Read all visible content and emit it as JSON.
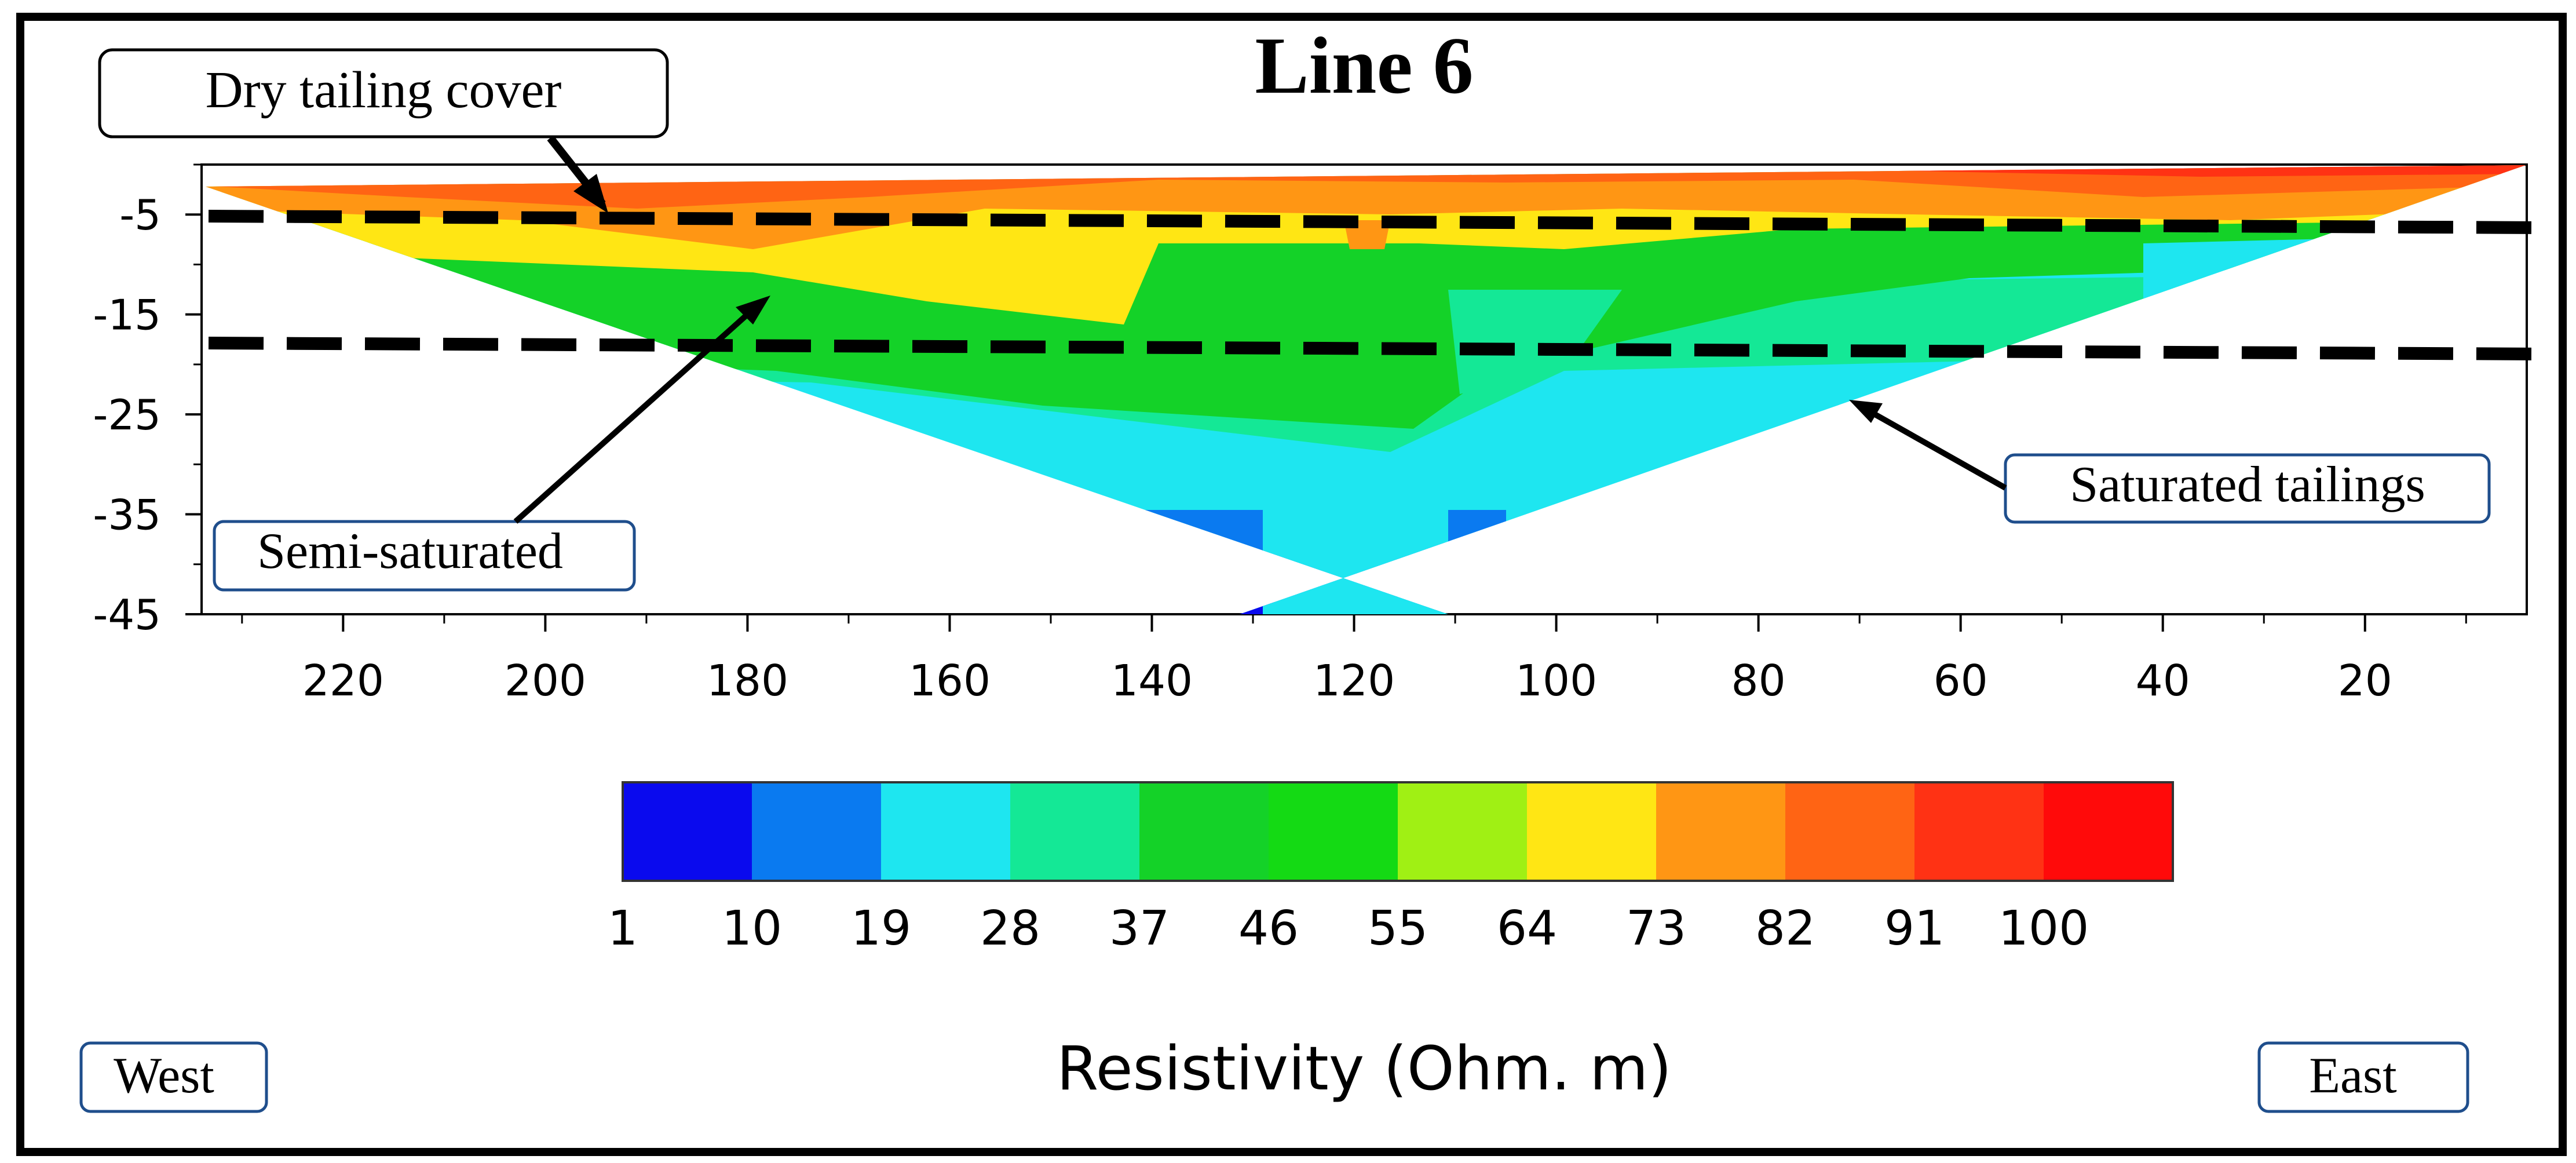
{
  "chart_data": {
    "type": "heatmap",
    "title": "Line 6",
    "xlabel": "",
    "ylabel": "",
    "x_axis_direction": "decreasing left to right",
    "xlim": [
      4,
      234
    ],
    "ylim": [
      -45,
      0
    ],
    "x_ticks": [
      220,
      200,
      180,
      160,
      140,
      120,
      100,
      80,
      60,
      40,
      20
    ],
    "y_ticks": [
      -5,
      -15,
      -25,
      -35,
      -45
    ],
    "colorbar": {
      "label": "Resistivity (Ohm. m)",
      "ticks": [
        1,
        10,
        19,
        28,
        37,
        46,
        55,
        64,
        73,
        82,
        91,
        100
      ],
      "colors": [
        "#0a0aee",
        "#0a7af0",
        "#1ee6f0",
        "#14e896",
        "#14d228",
        "#14da14",
        "#a0f014",
        "#ffe614",
        "#ff9614",
        "#ff6414",
        "#ff3214",
        "#ff0a0a"
      ]
    },
    "annotations": {
      "dry_cover": "Dry tailing cover",
      "semi": "Semi-saturated",
      "saturated": "Saturated tailings",
      "west": "West",
      "east": "East"
    },
    "boundaries": [
      {
        "name": "upper-dashed-boundary",
        "y_start": -4.8,
        "y_end": -6.3
      },
      {
        "name": "lower-dashed-boundary",
        "y_start": -17.3,
        "y_end": -18.9
      }
    ],
    "colors": {
      "cyan": "#1ee6f0",
      "teal": "#14e896",
      "green": "#14d228",
      "yellow": "#ffe614",
      "orange": "#ff9614",
      "red": "#ff3214",
      "blue": "#0a0aee",
      "lightblue": "#0a7af0"
    }
  }
}
